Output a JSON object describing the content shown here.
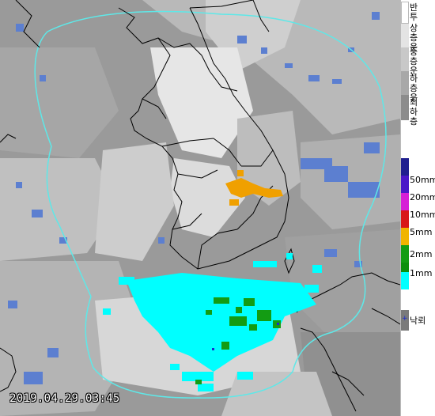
{
  "map": {
    "timestamp": "2019.04.29.03:45"
  },
  "legend": {
    "cloud_layers": [
      {
        "label": "반투",
        "color": "#ffffff"
      },
      {
        "label": "상층운",
        "color": "#e4e4e4"
      },
      {
        "label": "중층운",
        "color": "#c8c8c8"
      },
      {
        "label": "하층운",
        "color": "#a8a8a8"
      },
      {
        "label": "최하층",
        "color": "#8c8c8c"
      }
    ],
    "rain_levels": [
      {
        "label": "",
        "color": "#1f1f8f"
      },
      {
        "label": "50mm",
        "color": "#4a18c8"
      },
      {
        "label": "20mm",
        "color": "#d61fd6"
      },
      {
        "label": "10mm",
        "color": "#d81818"
      },
      {
        "label": "5mm",
        "color": "#f0b400"
      },
      {
        "label": "2mm",
        "color": "#139c13"
      },
      {
        "label": "1mm",
        "color": "#0d8f0d"
      },
      {
        "label": "",
        "color": "#00ffff"
      }
    ],
    "lightning_label": "낙뢰",
    "lightning_color": "#1a2bd0"
  },
  "colors": {
    "radar_boundary": "#5ee8e8",
    "coast": "#000000",
    "light_rain": "#00ffff",
    "medium_rain": "#139c13",
    "heavy_rain": "#f0a000"
  }
}
